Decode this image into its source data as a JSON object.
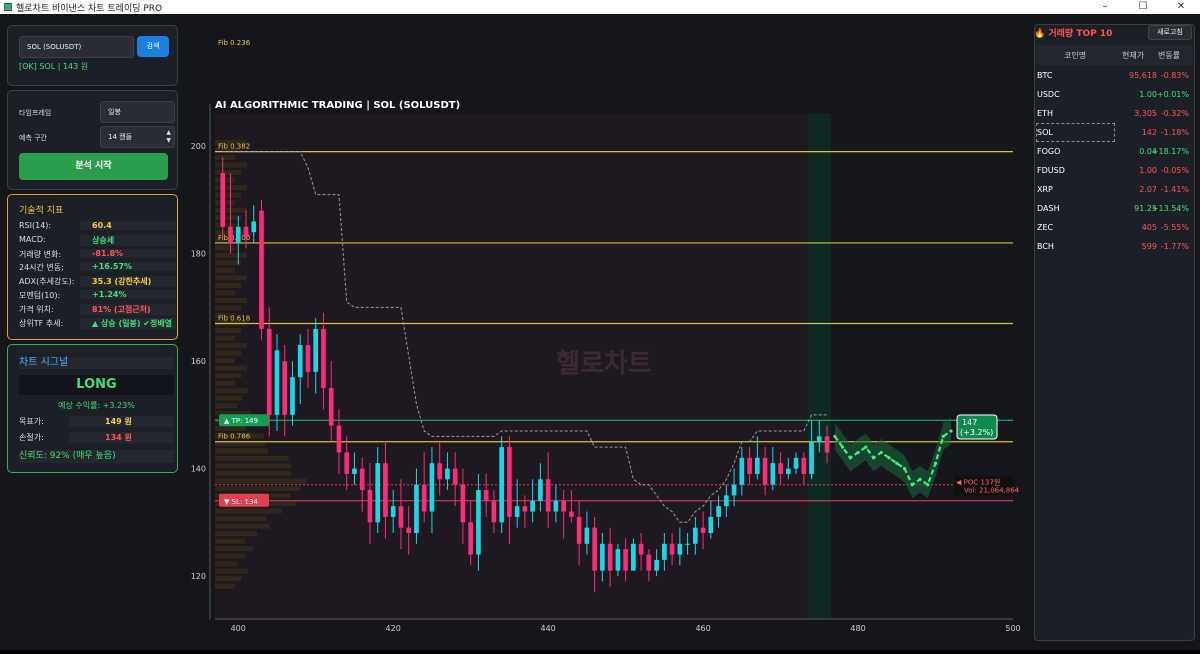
{
  "window": {
    "title": "헬로차트 바이낸스 차트 트레이딩 PRO",
    "min": "–",
    "max": "☐",
    "close": "✕"
  },
  "search": {
    "value": "SOL (SOLUSDT)",
    "button": "검색",
    "status": "[OK] SOL | 143 원"
  },
  "settings": {
    "timeframe_label": "타임프레임",
    "timeframe_value": "일봉",
    "forecast_label": "예측 구간",
    "forecast_value": "14 캔들",
    "analyze_button": "분석 시작"
  },
  "tech": {
    "title": "기술적 지표",
    "rows": [
      {
        "label": "RSI(14):",
        "value": "60.4",
        "color": "#f0d040"
      },
      {
        "label": "MACD:",
        "value": "상승세",
        "color": "#3ce07a"
      },
      {
        "label": "거래량 변화:",
        "value": "-81.8%",
        "color": "#ff5555"
      },
      {
        "label": "24시간 변동:",
        "value": "+16.57%",
        "color": "#3ce07a"
      },
      {
        "label": "ADX(추세강도):",
        "value": "35.3 (강한추세)",
        "color": "#f0d040"
      },
      {
        "label": "모멘텀(10):",
        "value": "+1.24%",
        "color": "#3ce07a"
      },
      {
        "label": "가격 위치:",
        "value": "81% (고점근처)",
        "color": "#ff5555"
      },
      {
        "label": "상위TF 추세:",
        "value": "▲ 상승 (일봉) ✔정배열",
        "color": "#3ce07a"
      }
    ]
  },
  "signal": {
    "title": "차트 시그널",
    "direction": "LONG",
    "expected": "예상 수익률: +3.23%",
    "target_label": "목표가:",
    "target_value": "149 원",
    "stop_label": "손절가:",
    "stop_value": "134 원",
    "confidence": "신뢰도: 92% (매우 높음)"
  },
  "chart": {
    "title": "AI ALGORITHMIC TRADING | SOL (SOLUSDT)",
    "watermark": "헬로차트",
    "tp_label": "▲ TP: 149",
    "sl_label": "▼ SL: 134",
    "poc_label": "◀ POC 137원",
    "poc_vol": "Vol: 21,064,864",
    "pred_label": "147",
    "pred_pct": "(+3.2%)",
    "fib_labels": [
      "Fib 0.236",
      "Fib 0.382",
      "Fib 0.500",
      "Fib 0.618",
      "Fib 0.786"
    ]
  },
  "chart_data": {
    "type": "candlestick",
    "title": "AI ALGORITHMIC TRADING | SOL (SOLUSDT)",
    "xticks": [
      400,
      420,
      440,
      460,
      480,
      500
    ],
    "yticks": [
      120,
      140,
      160,
      180,
      200
    ],
    "xlim": [
      397,
      500
    ],
    "ylim": [
      112,
      206
    ],
    "fib_levels": [
      {
        "label": "Fib 0.236",
        "y": 211
      },
      {
        "label": "Fib 0.382",
        "y": 199
      },
      {
        "label": "Fib 0.500",
        "y": 182
      },
      {
        "label": "Fib 0.618",
        "y": 167
      },
      {
        "label": "Fib 0.786",
        "y": 145
      }
    ],
    "tp": 149,
    "sl": 134,
    "poc": 137,
    "candles": [
      [
        398,
        195,
        185,
        198,
        183
      ],
      [
        399,
        185,
        182,
        195,
        180
      ],
      [
        400,
        182,
        185,
        187,
        178
      ],
      [
        401,
        185,
        183,
        188,
        181
      ],
      [
        402,
        184,
        186,
        189,
        182
      ],
      [
        403,
        188,
        166,
        190,
        164
      ],
      [
        404,
        166,
        150,
        170,
        146
      ],
      [
        405,
        150,
        162,
        165,
        147
      ],
      [
        406,
        160,
        150,
        163,
        146
      ],
      [
        407,
        150,
        157,
        160,
        148
      ],
      [
        408,
        157,
        163,
        165,
        152
      ],
      [
        409,
        163,
        158,
        166,
        155
      ],
      [
        410,
        158,
        166,
        168,
        154
      ],
      [
        411,
        166,
        155,
        169,
        151
      ],
      [
        412,
        155,
        148,
        160,
        145
      ],
      [
        413,
        148,
        143,
        151,
        139
      ],
      [
        414,
        143,
        139,
        146,
        136
      ],
      [
        415,
        139,
        140,
        143,
        137
      ],
      [
        416,
        140,
        136,
        142,
        132
      ],
      [
        417,
        136,
        130,
        141,
        126
      ],
      [
        418,
        130,
        141,
        144,
        128
      ],
      [
        419,
        141,
        131,
        145,
        127
      ],
      [
        420,
        131,
        133,
        136,
        128
      ],
      [
        421,
        133,
        129,
        138,
        125
      ],
      [
        422,
        129,
        128,
        133,
        124
      ],
      [
        423,
        128,
        137,
        140,
        126
      ],
      [
        424,
        137,
        132,
        143,
        130
      ],
      [
        425,
        132,
        141,
        144,
        128
      ],
      [
        426,
        141,
        138,
        145,
        135
      ],
      [
        427,
        138,
        140,
        143,
        136
      ],
      [
        428,
        140,
        137,
        143,
        133
      ],
      [
        429,
        137,
        130,
        140,
        126
      ],
      [
        430,
        130,
        124,
        134,
        122
      ],
      [
        431,
        124,
        136,
        139,
        121
      ],
      [
        432,
        136,
        134,
        139,
        131
      ],
      [
        433,
        134,
        130,
        136,
        128
      ],
      [
        434,
        130,
        144,
        146,
        128
      ],
      [
        435,
        144,
        131,
        146,
        126
      ],
      [
        436,
        131,
        133,
        138,
        129
      ],
      [
        437,
        133,
        132,
        135,
        129
      ],
      [
        438,
        132,
        134,
        138,
        130
      ],
      [
        439,
        134,
        138,
        141,
        132
      ],
      [
        440,
        138,
        132,
        143,
        129
      ],
      [
        441,
        132,
        134,
        137,
        130
      ],
      [
        442,
        134,
        132,
        136,
        127
      ],
      [
        443,
        132,
        131,
        136,
        130
      ],
      [
        444,
        131,
        126,
        134,
        122
      ],
      [
        445,
        126,
        129,
        132,
        124
      ],
      [
        446,
        129,
        121,
        131,
        117
      ],
      [
        447,
        121,
        126,
        128,
        119
      ],
      [
        448,
        126,
        121,
        129,
        118
      ],
      [
        449,
        121,
        125,
        126,
        120
      ],
      [
        450,
        125,
        121,
        127,
        119
      ],
      [
        451,
        121,
        126,
        127,
        121
      ],
      [
        452,
        126,
        124,
        128,
        121
      ],
      [
        453,
        124,
        121,
        125,
        119
      ],
      [
        454,
        121,
        123,
        125,
        120
      ],
      [
        455,
        123,
        126,
        128,
        121
      ],
      [
        456,
        126,
        124,
        128,
        122
      ],
      [
        457,
        124,
        126,
        129,
        122
      ],
      [
        458,
        126,
        126,
        128,
        124
      ],
      [
        459,
        126,
        129,
        131,
        124
      ],
      [
        460,
        129,
        128,
        132,
        125
      ],
      [
        461,
        128,
        131,
        134,
        127
      ],
      [
        462,
        131,
        133,
        135,
        129
      ],
      [
        463,
        133,
        135,
        137,
        131
      ],
      [
        464,
        135,
        137,
        140,
        133
      ],
      [
        465,
        137,
        142,
        144,
        135
      ],
      [
        466,
        142,
        139,
        144,
        137
      ],
      [
        467,
        139,
        142,
        146,
        138
      ],
      [
        468,
        142,
        137,
        144,
        135
      ],
      [
        469,
        137,
        141,
        144,
        136
      ],
      [
        470,
        141,
        139,
        143,
        137
      ],
      [
        471,
        139,
        140,
        142,
        138
      ],
      [
        472,
        140,
        142,
        143,
        139
      ],
      [
        473,
        142,
        139,
        143,
        137
      ],
      [
        474,
        139,
        145,
        149,
        138
      ],
      [
        475,
        145,
        146,
        149,
        143
      ],
      [
        476,
        146,
        143,
        148,
        141
      ]
    ],
    "forecast": [
      [
        477,
        146
      ],
      [
        478,
        144
      ],
      [
        479,
        142
      ],
      [
        480,
        143
      ],
      [
        481,
        144
      ],
      [
        482,
        142
      ],
      [
        483,
        143
      ],
      [
        484,
        142
      ],
      [
        485,
        141
      ],
      [
        486,
        140
      ],
      [
        487,
        137
      ],
      [
        488,
        138
      ],
      [
        489,
        137
      ],
      [
        490,
        141
      ],
      [
        491,
        146
      ],
      [
        492,
        147
      ]
    ]
  },
  "top10": {
    "title": "🔥 거래량 TOP 10",
    "refresh": "새로고침",
    "headers": [
      "코인명",
      "현재가",
      "변동률"
    ],
    "rows": [
      {
        "name": "BTC",
        "price": "95,618",
        "change": "-0.83%"
      },
      {
        "name": "USDC",
        "price": "1.00",
        "change": "+0.01%"
      },
      {
        "name": "ETH",
        "price": "3,305",
        "change": "-0.32%"
      },
      {
        "name": "SOL",
        "price": "142",
        "change": "-1.18%"
      },
      {
        "name": "FOGO",
        "price": "0.04",
        "change": "+18.17%"
      },
      {
        "name": "FDUSD",
        "price": "1.00",
        "change": "-0.05%"
      },
      {
        "name": "XRP",
        "price": "2.07",
        "change": "-1.41%"
      },
      {
        "name": "DASH",
        "price": "91.25",
        "change": "+13.54%"
      },
      {
        "name": "ZEC",
        "price": "405",
        "change": "-5.55%"
      },
      {
        "name": "BCH",
        "price": "599",
        "change": "-1.77%"
      }
    ]
  }
}
